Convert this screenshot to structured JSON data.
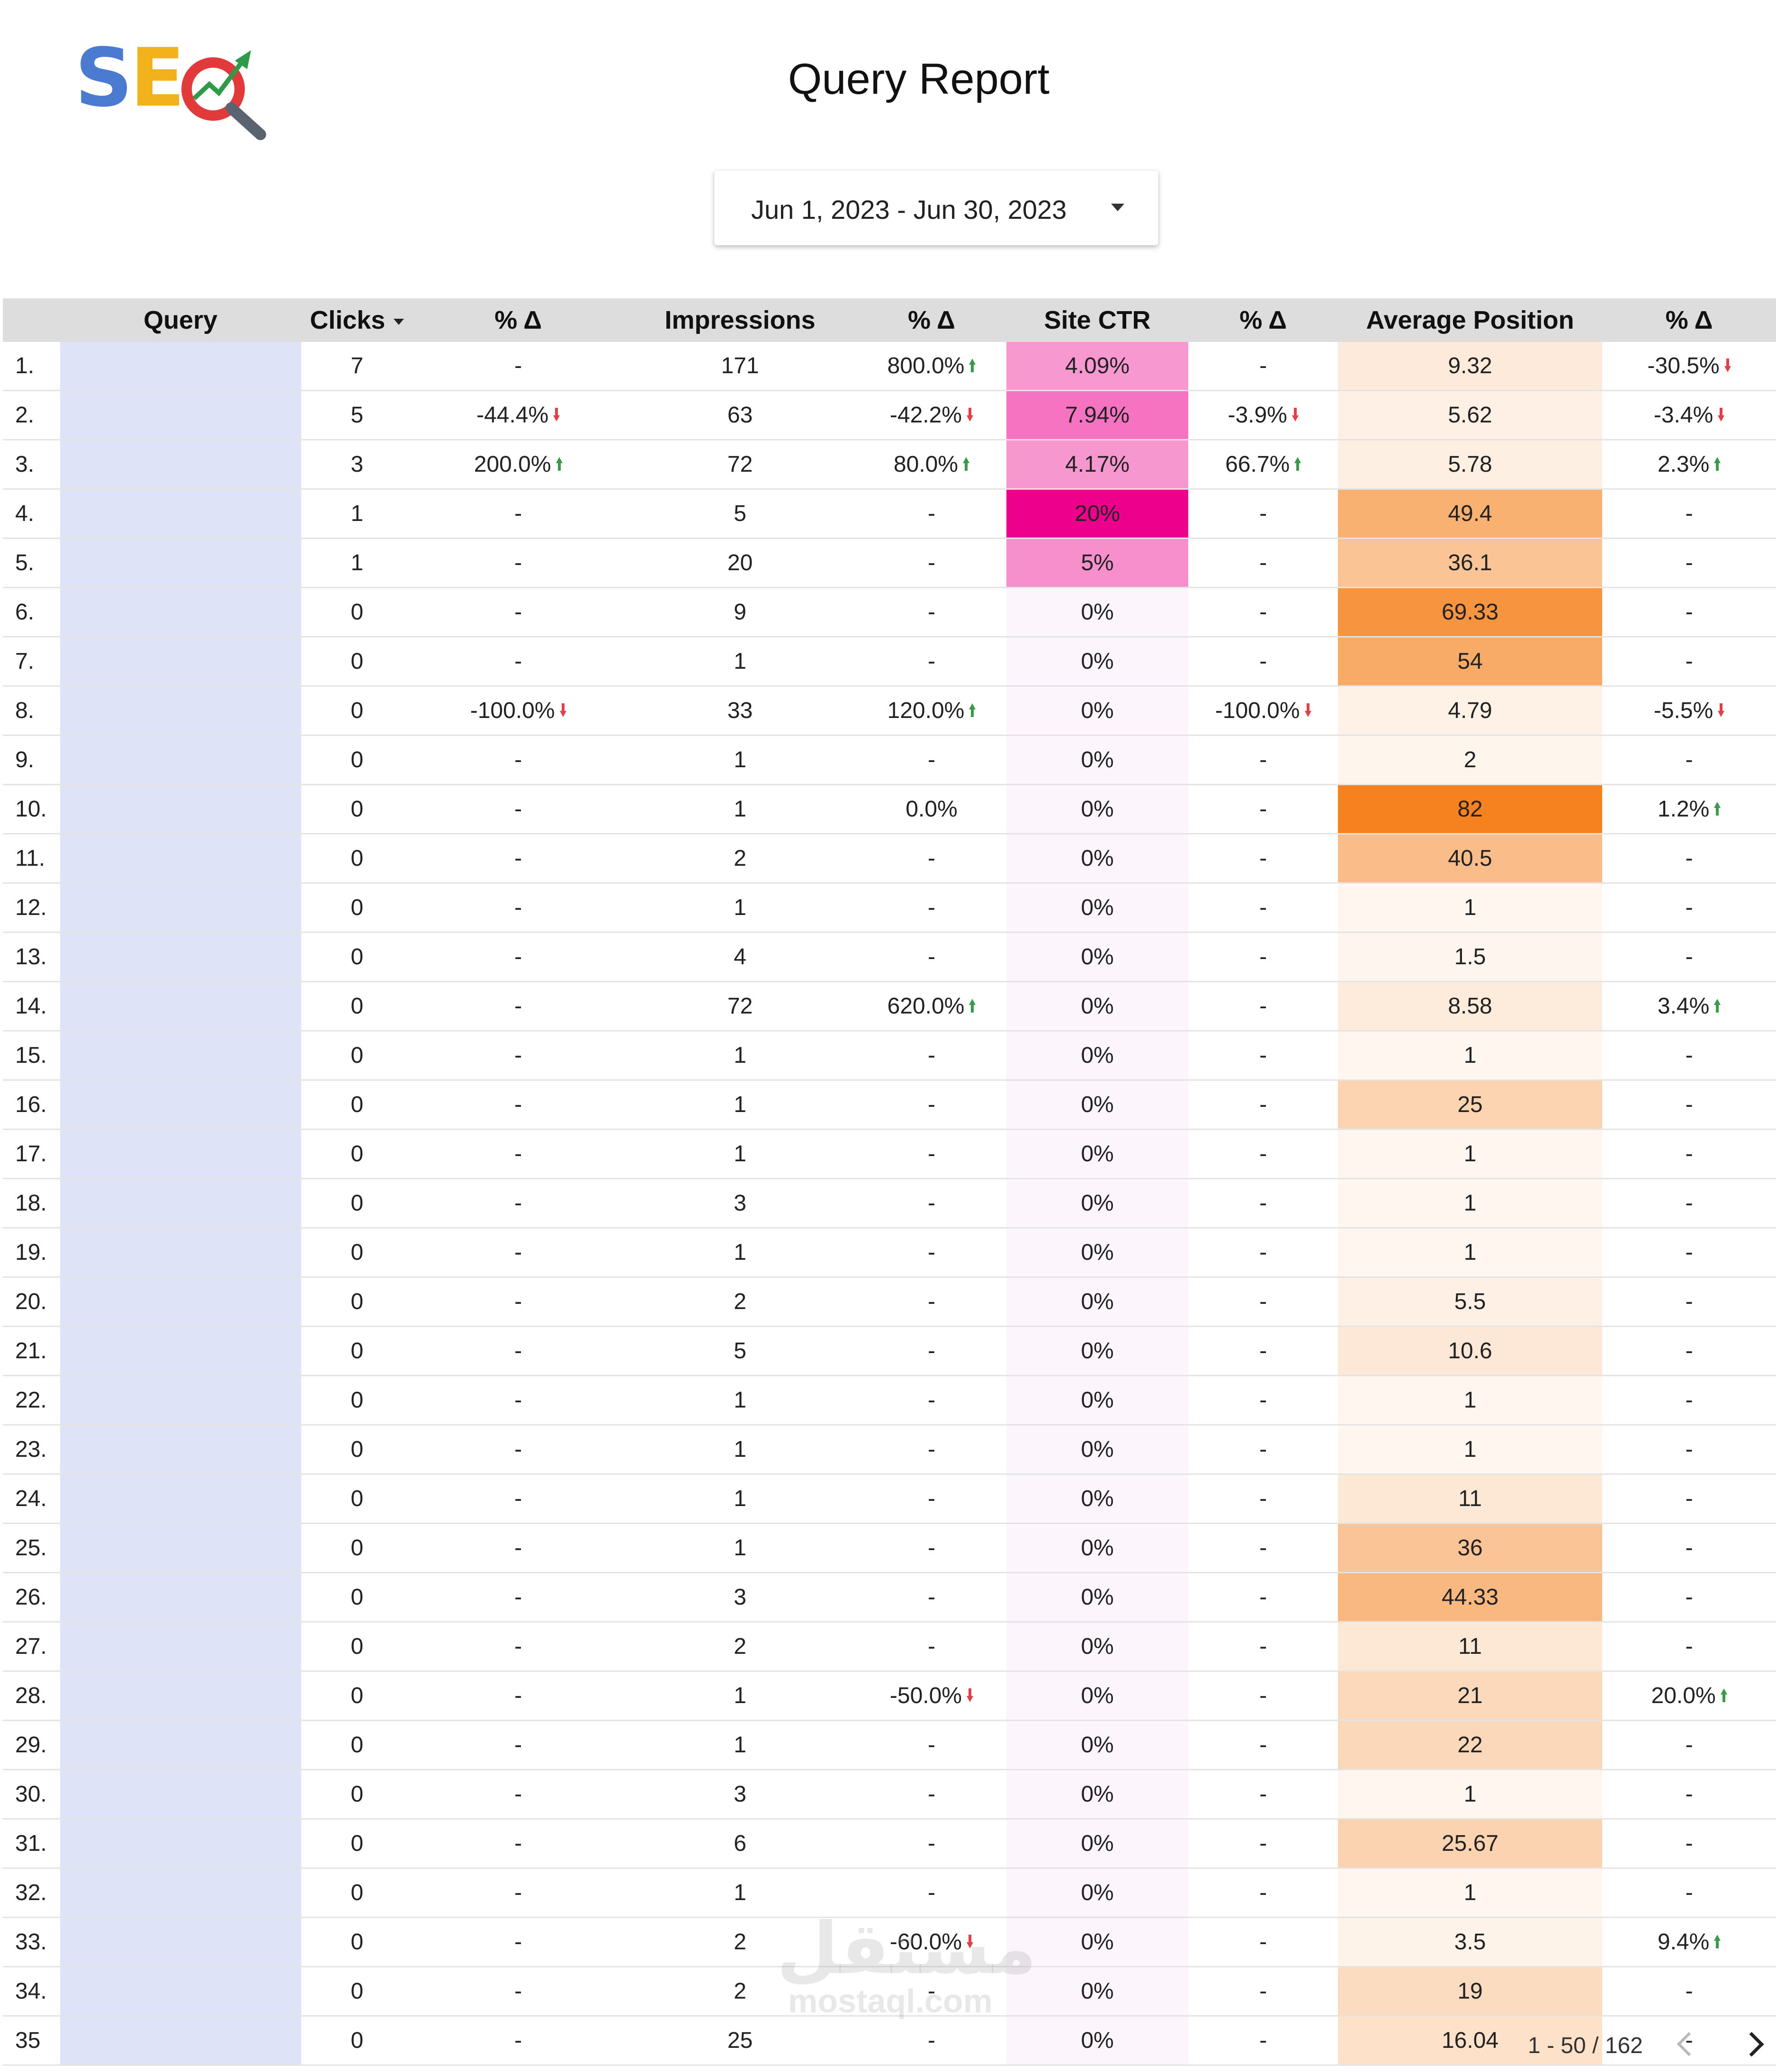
{
  "logo": {
    "s": "S",
    "e": "E",
    "name": "seo-magnifier-logo"
  },
  "title": "Query Report",
  "date_range": "Jun 1, 2023 - Jun 30, 2023",
  "columns": [
    "Query",
    "Clicks",
    "% Δ",
    "Impressions",
    "% Δ",
    "Site CTR",
    "% Δ",
    "Average Position",
    "% Δ"
  ],
  "colors": {
    "header_bg": "#dddddd",
    "query_bg": "#dfe3f7",
    "ctr_scale": "#ec008c",
    "pos_scale": "#f5821f",
    "up": "#3a9a4a",
    "down": "#e0404a"
  },
  "rows": [
    {
      "n": "1.",
      "clicks": "7",
      "cd": "-",
      "imp": "171",
      "id": "800.0%",
      "idir": "up",
      "ctr": "4.09%",
      "ctd": "-",
      "pos": "9.32",
      "pd": "-30.5%",
      "pdir": "down"
    },
    {
      "n": "2.",
      "clicks": "5",
      "cd": "-44.4%",
      "cdir": "down",
      "imp": "63",
      "id": "-42.2%",
      "idir": "down",
      "ctr": "7.94%",
      "ctd": "-3.9%",
      "ctdir": "down",
      "pos": "5.62",
      "pd": "-3.4%",
      "pdir": "down"
    },
    {
      "n": "3.",
      "clicks": "3",
      "cd": "200.0%",
      "cdir": "up",
      "imp": "72",
      "id": "80.0%",
      "idir": "up",
      "ctr": "4.17%",
      "ctd": "66.7%",
      "ctdir": "up",
      "pos": "5.78",
      "pd": "2.3%",
      "pdir": "up"
    },
    {
      "n": "4.",
      "clicks": "1",
      "cd": "-",
      "imp": "5",
      "id": "-",
      "ctr": "20%",
      "ctd": "-",
      "pos": "49.4",
      "pd": "-"
    },
    {
      "n": "5.",
      "clicks": "1",
      "cd": "-",
      "imp": "20",
      "id": "-",
      "ctr": "5%",
      "ctd": "-",
      "pos": "36.1",
      "pd": "-"
    },
    {
      "n": "6.",
      "clicks": "0",
      "cd": "-",
      "imp": "9",
      "id": "-",
      "ctr": "0%",
      "ctd": "-",
      "pos": "69.33",
      "pd": "-"
    },
    {
      "n": "7.",
      "clicks": "0",
      "cd": "-",
      "imp": "1",
      "id": "-",
      "ctr": "0%",
      "ctd": "-",
      "pos": "54",
      "pd": "-"
    },
    {
      "n": "8.",
      "clicks": "0",
      "cd": "-100.0%",
      "cdir": "down",
      "imp": "33",
      "id": "120.0%",
      "idir": "up",
      "ctr": "0%",
      "ctd": "-100.0%",
      "ctdir": "down",
      "pos": "4.79",
      "pd": "-5.5%",
      "pdir": "down"
    },
    {
      "n": "9.",
      "clicks": "0",
      "cd": "-",
      "imp": "1",
      "id": "-",
      "ctr": "0%",
      "ctd": "-",
      "pos": "2",
      "pd": "-"
    },
    {
      "n": "10.",
      "clicks": "0",
      "cd": "-",
      "imp": "1",
      "id": "0.0%",
      "ctr": "0%",
      "ctd": "-",
      "pos": "82",
      "pd": "1.2%",
      "pdir": "up"
    },
    {
      "n": "11.",
      "clicks": "0",
      "cd": "-",
      "imp": "2",
      "id": "-",
      "ctr": "0%",
      "ctd": "-",
      "pos": "40.5",
      "pd": "-"
    },
    {
      "n": "12.",
      "clicks": "0",
      "cd": "-",
      "imp": "1",
      "id": "-",
      "ctr": "0%",
      "ctd": "-",
      "pos": "1",
      "pd": "-"
    },
    {
      "n": "13.",
      "clicks": "0",
      "cd": "-",
      "imp": "4",
      "id": "-",
      "ctr": "0%",
      "ctd": "-",
      "pos": "1.5",
      "pd": "-"
    },
    {
      "n": "14.",
      "clicks": "0",
      "cd": "-",
      "imp": "72",
      "id": "620.0%",
      "idir": "up",
      "ctr": "0%",
      "ctd": "-",
      "pos": "8.58",
      "pd": "3.4%",
      "pdir": "up"
    },
    {
      "n": "15.",
      "clicks": "0",
      "cd": "-",
      "imp": "1",
      "id": "-",
      "ctr": "0%",
      "ctd": "-",
      "pos": "1",
      "pd": "-"
    },
    {
      "n": "16.",
      "clicks": "0",
      "cd": "-",
      "imp": "1",
      "id": "-",
      "ctr": "0%",
      "ctd": "-",
      "pos": "25",
      "pd": "-"
    },
    {
      "n": "17.",
      "clicks": "0",
      "cd": "-",
      "imp": "1",
      "id": "-",
      "ctr": "0%",
      "ctd": "-",
      "pos": "1",
      "pd": "-"
    },
    {
      "n": "18.",
      "clicks": "0",
      "cd": "-",
      "imp": "3",
      "id": "-",
      "ctr": "0%",
      "ctd": "-",
      "pos": "1",
      "pd": "-"
    },
    {
      "n": "19.",
      "clicks": "0",
      "cd": "-",
      "imp": "1",
      "id": "-",
      "ctr": "0%",
      "ctd": "-",
      "pos": "1",
      "pd": "-"
    },
    {
      "n": "20.",
      "clicks": "0",
      "cd": "-",
      "imp": "2",
      "id": "-",
      "ctr": "0%",
      "ctd": "-",
      "pos": "5.5",
      "pd": "-"
    },
    {
      "n": "21.",
      "clicks": "0",
      "cd": "-",
      "imp": "5",
      "id": "-",
      "ctr": "0%",
      "ctd": "-",
      "pos": "10.6",
      "pd": "-"
    },
    {
      "n": "22.",
      "clicks": "0",
      "cd": "-",
      "imp": "1",
      "id": "-",
      "ctr": "0%",
      "ctd": "-",
      "pos": "1",
      "pd": "-"
    },
    {
      "n": "23.",
      "clicks": "0",
      "cd": "-",
      "imp": "1",
      "id": "-",
      "ctr": "0%",
      "ctd": "-",
      "pos": "1",
      "pd": "-"
    },
    {
      "n": "24.",
      "clicks": "0",
      "cd": "-",
      "imp": "1",
      "id": "-",
      "ctr": "0%",
      "ctd": "-",
      "pos": "11",
      "pd": "-"
    },
    {
      "n": "25.",
      "clicks": "0",
      "cd": "-",
      "imp": "1",
      "id": "-",
      "ctr": "0%",
      "ctd": "-",
      "pos": "36",
      "pd": "-"
    },
    {
      "n": "26.",
      "clicks": "0",
      "cd": "-",
      "imp": "3",
      "id": "-",
      "ctr": "0%",
      "ctd": "-",
      "pos": "44.33",
      "pd": "-"
    },
    {
      "n": "27.",
      "clicks": "0",
      "cd": "-",
      "imp": "2",
      "id": "-",
      "ctr": "0%",
      "ctd": "-",
      "pos": "11",
      "pd": "-"
    },
    {
      "n": "28.",
      "clicks": "0",
      "cd": "-",
      "imp": "1",
      "id": "-50.0%",
      "idir": "down",
      "ctr": "0%",
      "ctd": "-",
      "pos": "21",
      "pd": "20.0%",
      "pdir": "up"
    },
    {
      "n": "29.",
      "clicks": "0",
      "cd": "-",
      "imp": "1",
      "id": "-",
      "ctr": "0%",
      "ctd": "-",
      "pos": "22",
      "pd": "-"
    },
    {
      "n": "30.",
      "clicks": "0",
      "cd": "-",
      "imp": "3",
      "id": "-",
      "ctr": "0%",
      "ctd": "-",
      "pos": "1",
      "pd": "-"
    },
    {
      "n": "31.",
      "clicks": "0",
      "cd": "-",
      "imp": "6",
      "id": "-",
      "ctr": "0%",
      "ctd": "-",
      "pos": "25.67",
      "pd": "-"
    },
    {
      "n": "32.",
      "clicks": "0",
      "cd": "-",
      "imp": "1",
      "id": "-",
      "ctr": "0%",
      "ctd": "-",
      "pos": "1",
      "pd": "-"
    },
    {
      "n": "33.",
      "clicks": "0",
      "cd": "-",
      "imp": "2",
      "id": "-60.0%",
      "idir": "down",
      "ctr": "0%",
      "ctd": "-",
      "pos": "3.5",
      "pd": "9.4%",
      "pdir": "up"
    },
    {
      "n": "34.",
      "clicks": "0",
      "cd": "-",
      "imp": "2",
      "id": "-",
      "ctr": "0%",
      "ctd": "-",
      "pos": "19",
      "pd": "-"
    },
    {
      "n": "35",
      "clicks": "0",
      "cd": "-",
      "imp": "25",
      "id": "-",
      "ctr": "0%",
      "ctd": "-",
      "pos": "16.04",
      "pd": "-"
    }
  ],
  "pagination": "1 - 50 / 162",
  "watermark": {
    "line1": "مستقل",
    "line2": "mostaql.com"
  }
}
